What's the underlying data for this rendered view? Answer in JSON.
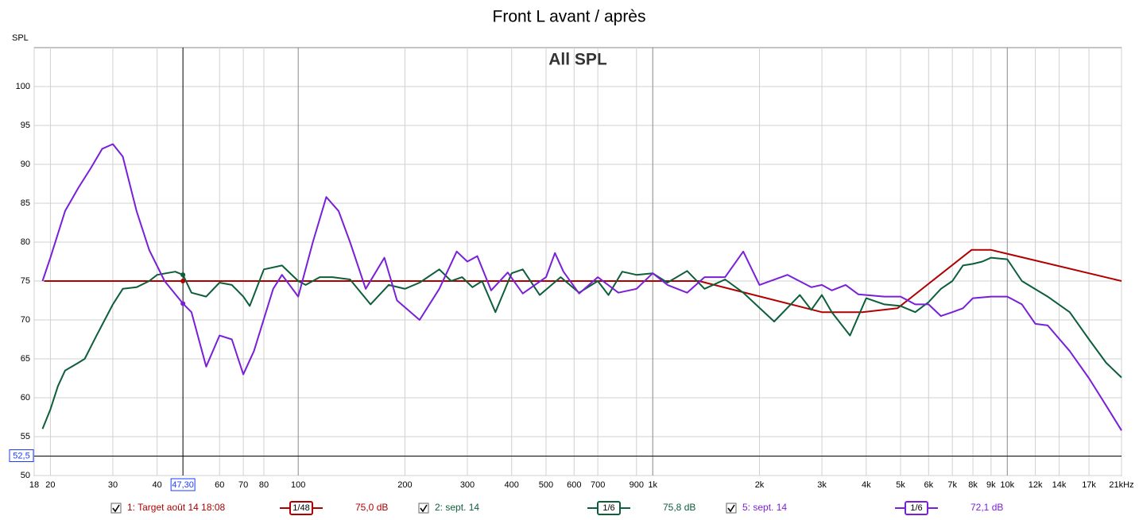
{
  "chart_data": {
    "type": "line",
    "title": "Front L avant / après",
    "subtitle": "All SPL",
    "y_label": "SPL",
    "log_x": true,
    "grid": true,
    "xlim": [
      18,
      21000
    ],
    "ylim": [
      50,
      105
    ],
    "yticks": [
      50,
      55,
      60,
      65,
      70,
      75,
      80,
      85,
      90,
      95,
      100
    ],
    "xticks": [
      18,
      20,
      30,
      40,
      60,
      70,
      80,
      100,
      200,
      300,
      400,
      500,
      600,
      700,
      900,
      {
        "value": 1000,
        "label": "1k"
      },
      {
        "value": 2000,
        "label": "2k"
      },
      {
        "value": 3000,
        "label": "3k"
      },
      {
        "value": 4000,
        "label": "4k"
      },
      {
        "value": 5000,
        "label": "5k"
      },
      {
        "value": 6000,
        "label": "6k"
      },
      {
        "value": 7000,
        "label": "7k"
      },
      {
        "value": 8000,
        "label": "8k"
      },
      {
        "value": 9000,
        "label": "9k"
      },
      {
        "value": 10000,
        "label": "10k"
      },
      {
        "value": 12000,
        "label": "12k"
      },
      {
        "value": 14000,
        "label": "14k"
      },
      {
        "value": 17000,
        "label": "17k"
      },
      {
        "value": 21000,
        "label": "21kHz"
      }
    ],
    "cursor": {
      "x": {
        "value": 47.3,
        "label": "47,30"
      },
      "y": {
        "value": 52.5,
        "label": "52,5"
      }
    },
    "series": [
      {
        "name": "1: Target août 14 18:08",
        "color": "#b00000",
        "smoothing": "1/48",
        "cursor_value": {
          "value": 75.0,
          "label": "75,0 dB"
        },
        "x": [
          19.2,
          1350,
          3000,
          3900,
          4900,
          7930,
          9000,
          21000
        ],
        "values": [
          75,
          75,
          71,
          71,
          71.5,
          79,
          79,
          75
        ]
      },
      {
        "name": "2: sept. 14",
        "color": "#0d5e3a",
        "smoothing": "1/6",
        "cursor_value": {
          "value": 75.8,
          "label": "75,8 dB"
        },
        "x": [
          19,
          20,
          21,
          22,
          24,
          25,
          27,
          30,
          32,
          35,
          38,
          40,
          45,
          47.3,
          50,
          55,
          60,
          65,
          70,
          73,
          80,
          90,
          100,
          105,
          115,
          125,
          140,
          160,
          180,
          200,
          220,
          250,
          270,
          290,
          310,
          330,
          360,
          400,
          430,
          480,
          550,
          620,
          700,
          750,
          820,
          900,
          1000,
          1100,
          1250,
          1400,
          1600,
          1800,
          2200,
          2600,
          2800,
          3000,
          3200,
          3600,
          4000,
          4500,
          5000,
          5500,
          6000,
          6500,
          7000,
          7500,
          8000,
          8500,
          9000,
          10000,
          11000,
          13000,
          15000,
          17000,
          19000,
          21000
        ],
        "values": [
          56,
          58.5,
          61.5,
          63.5,
          64.5,
          65,
          68,
          72,
          74,
          74.2,
          75,
          75.8,
          76.2,
          75.8,
          73.5,
          73,
          74.8,
          74.5,
          73,
          71.8,
          76.5,
          77,
          75,
          74.5,
          75.5,
          75.5,
          75.2,
          72,
          74.5,
          74,
          74.8,
          76.5,
          75,
          75.5,
          74.2,
          75,
          71,
          76,
          76.5,
          73.2,
          75.5,
          73.5,
          75,
          73.2,
          76.2,
          75.8,
          76,
          74.8,
          76.3,
          74,
          75.2,
          73.5,
          69.8,
          73.2,
          71.3,
          73.2,
          71,
          68,
          72.8,
          72,
          71.8,
          71,
          72.3,
          74,
          75,
          77,
          77.2,
          77.5,
          78,
          77.8,
          75,
          73,
          71,
          67.5,
          64.5,
          62.6
        ]
      },
      {
        "name": "5: sept. 14",
        "color": "#7a1fd8",
        "smoothing": "1/6",
        "cursor_value": {
          "value": 72.1,
          "label": "72,1 dB"
        },
        "x": [
          19,
          20,
          22,
          24,
          26,
          28,
          30,
          32,
          35,
          38,
          42,
          47.3,
          50,
          55,
          60,
          65,
          70,
          75,
          85,
          90,
          100,
          110,
          120,
          130,
          140,
          155,
          175,
          190,
          220,
          250,
          280,
          300,
          320,
          350,
          390,
          430,
          500,
          530,
          560,
          620,
          700,
          800,
          900,
          1000,
          1100,
          1250,
          1400,
          1600,
          1800,
          2000,
          2400,
          2800,
          3000,
          3200,
          3500,
          3800,
          4500,
          5000,
          5500,
          6000,
          6500,
          7000,
          7500,
          8000,
          9000,
          10000,
          11000,
          12000,
          13000,
          15000,
          17000,
          19000,
          21000
        ],
        "values": [
          75,
          78,
          84,
          87,
          89.5,
          92,
          92.6,
          91,
          84,
          79,
          75,
          72.1,
          71,
          64,
          68,
          67.5,
          63,
          66,
          74,
          75.8,
          73,
          80,
          85.8,
          84,
          80,
          74,
          78,
          72.5,
          70,
          74,
          78.8,
          77.5,
          78.2,
          73.8,
          76.1,
          73.4,
          75.5,
          78.6,
          76.2,
          73.4,
          75.5,
          73.5,
          74,
          76,
          74.5,
          73.5,
          75.5,
          75.5,
          78.8,
          74.5,
          75.8,
          74.2,
          74.5,
          73.8,
          74.5,
          73.3,
          73,
          73,
          72,
          72,
          70.5,
          71,
          71.5,
          72.8,
          73,
          73,
          72,
          69.5,
          69.3,
          66,
          62.5,
          59,
          55.8
        ]
      }
    ]
  }
}
